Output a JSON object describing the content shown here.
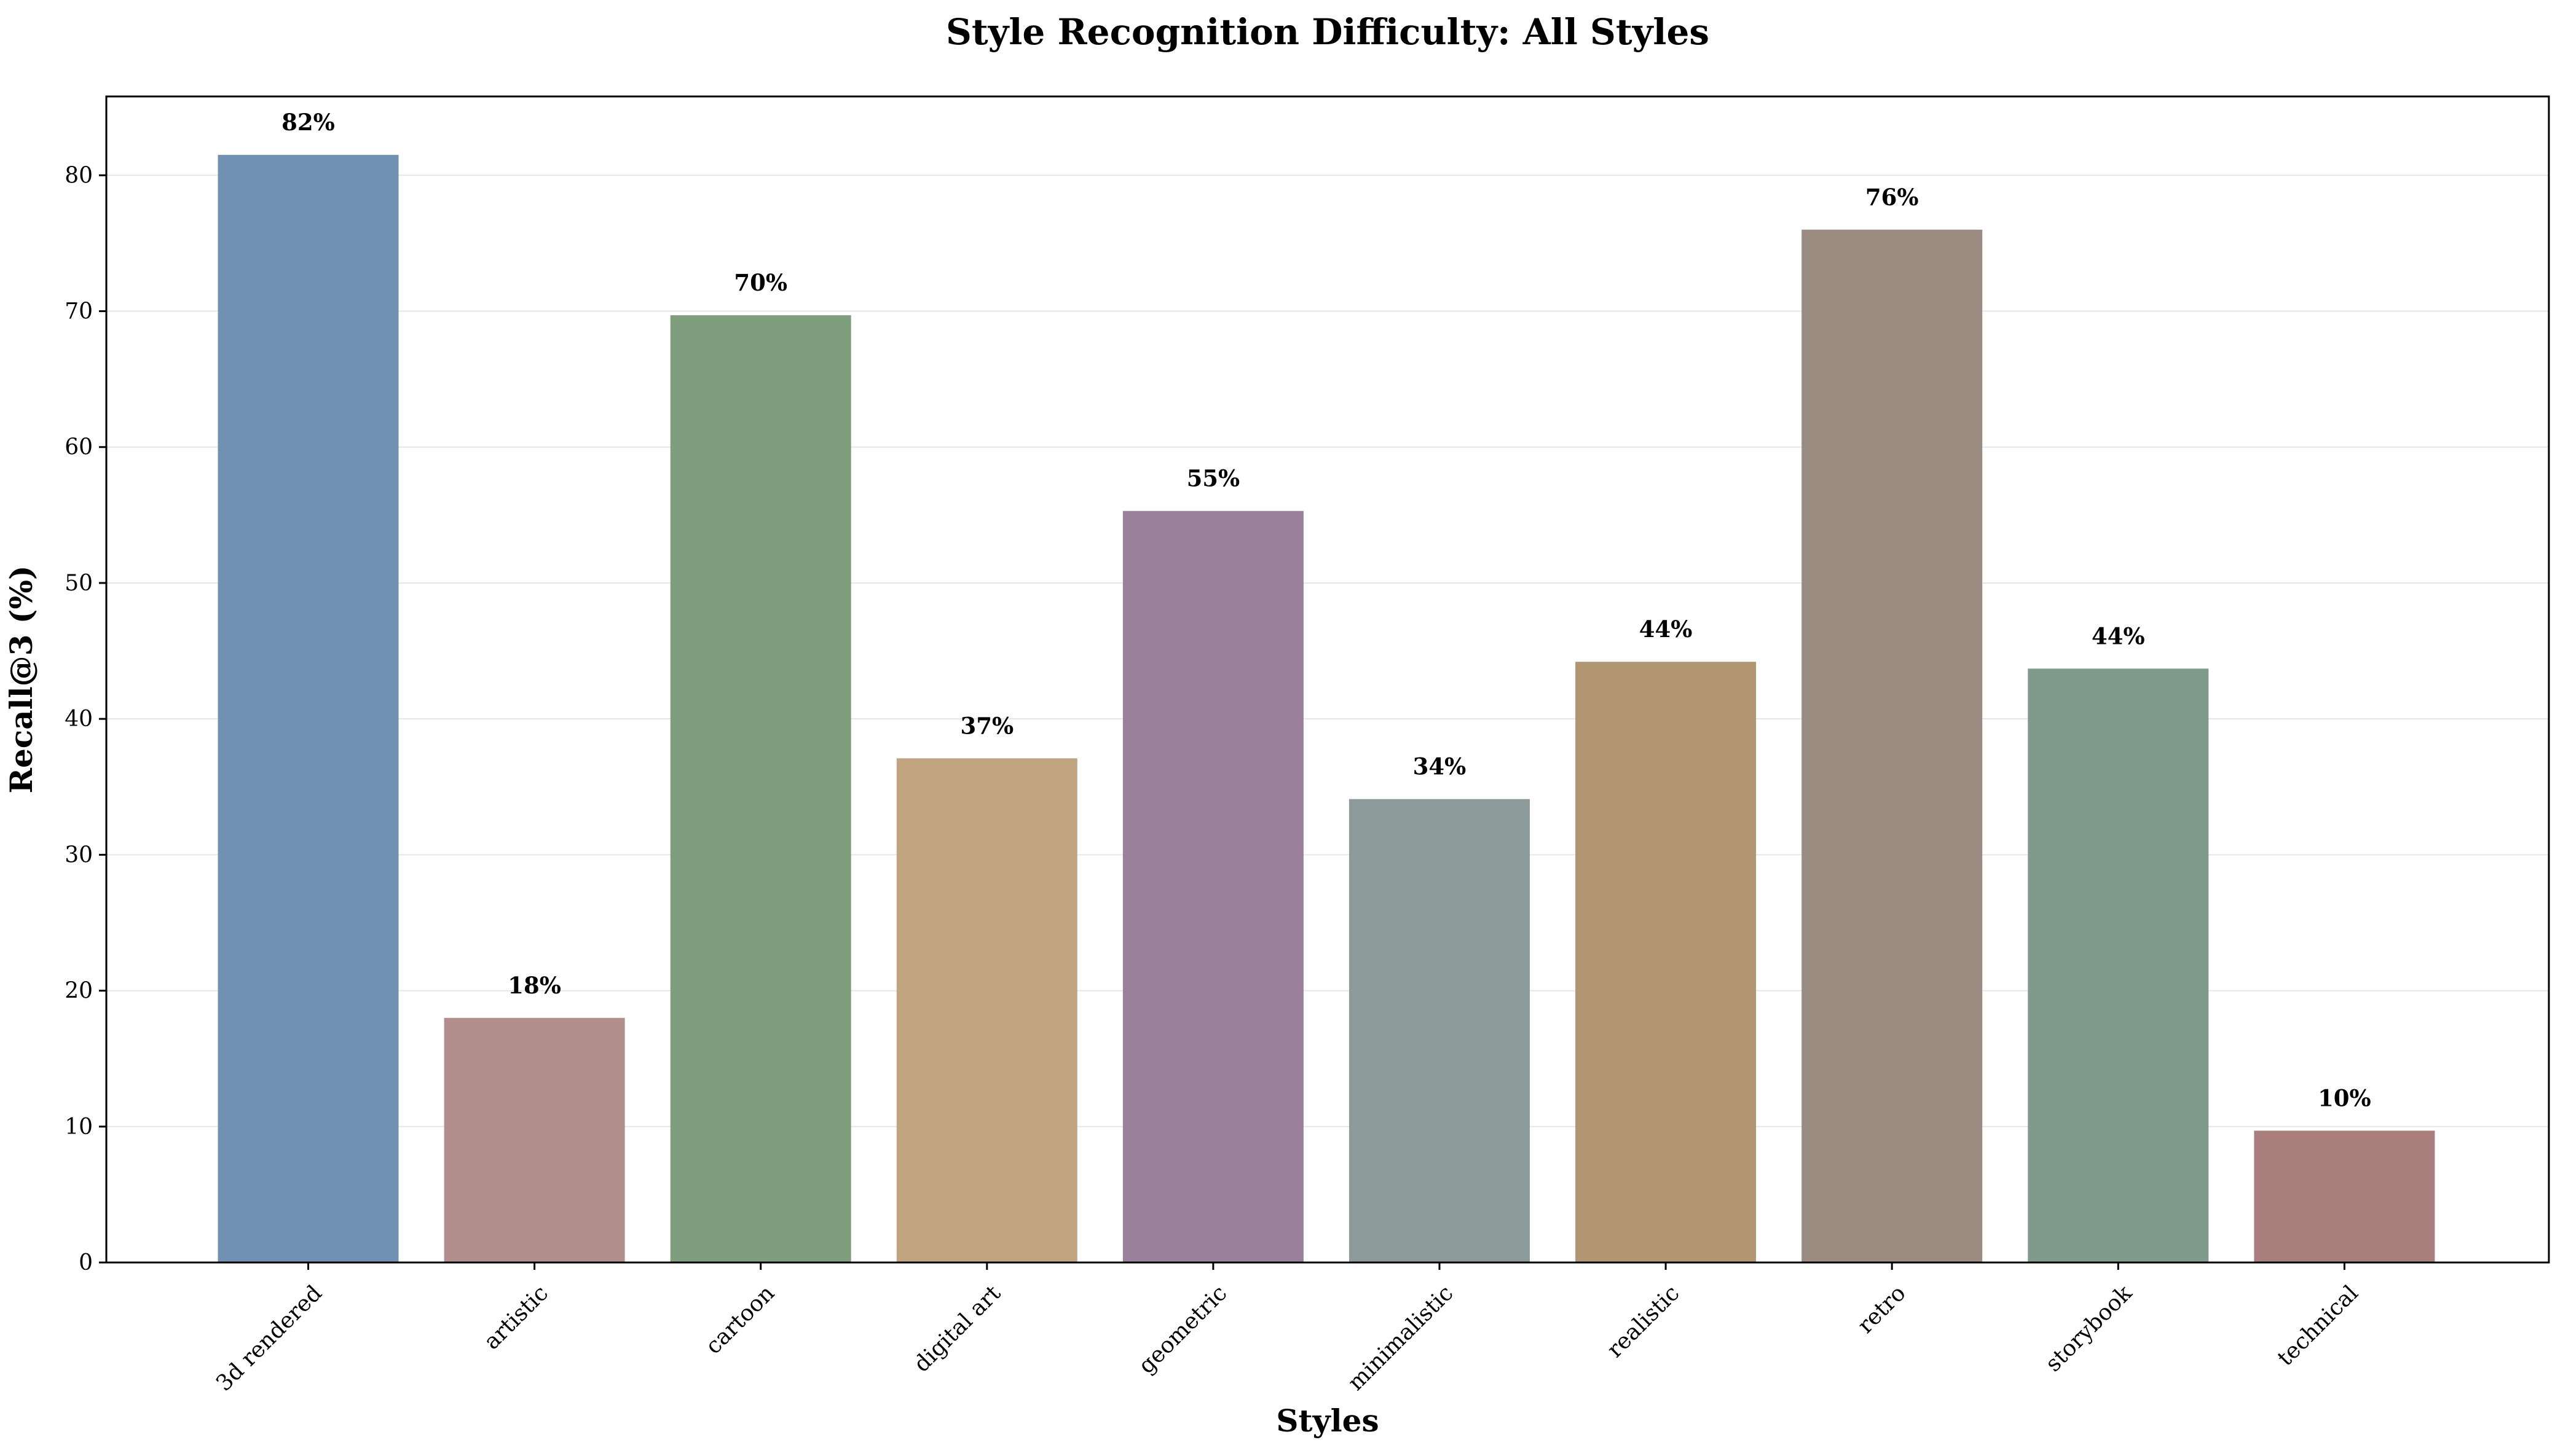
{
  "chart_data": {
    "type": "bar",
    "title": "Style Recognition Difficulty: All Styles",
    "xlabel": "Styles",
    "ylabel": "Recall@3 (%)",
    "categories": [
      "3d rendered",
      "artistic",
      "cartoon",
      "digital art",
      "geometric",
      "minimalistic",
      "realistic",
      "retro",
      "storybook",
      "technical"
    ],
    "values": [
      81.5,
      18.0,
      69.7,
      37.1,
      55.3,
      34.1,
      44.2,
      76.0,
      43.7,
      9.7
    ],
    "data_labels": [
      "82%",
      "18%",
      "70%",
      "37%",
      "55%",
      "34%",
      "44%",
      "76%",
      "44%",
      "10%"
    ],
    "colors": [
      "#7191b3",
      "#b28e8c",
      "#7f9e7e",
      "#c0a480",
      "#9a8199",
      "#8c9b99",
      "#b19671",
      "#9a8c80",
      "#809b8c",
      "#a87f7d"
    ],
    "ylim": [
      0,
      85.8
    ],
    "yticks": [
      0,
      10,
      20,
      30,
      40,
      50,
      60,
      70,
      80
    ],
    "grid": "y",
    "legend": "none"
  }
}
